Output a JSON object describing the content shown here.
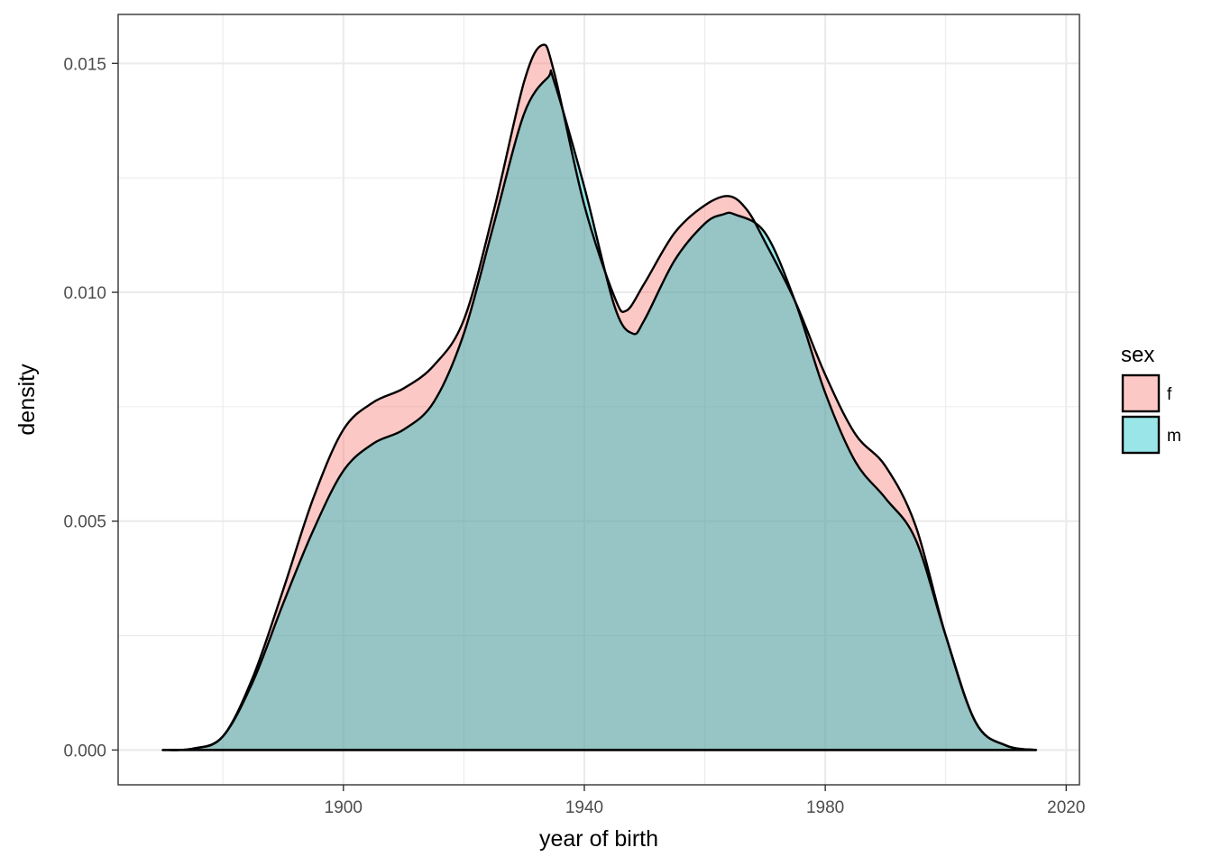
{
  "chart_data": {
    "type": "area",
    "subtype": "density",
    "xlabel": "year of birth",
    "ylabel": "density",
    "xlim": [
      1862.6,
      2022.2
    ],
    "ylim": [
      -0.00076,
      0.01607
    ],
    "x_ticks": [
      1900,
      1940,
      1980,
      2020
    ],
    "x_tick_labels": [
      "1900",
      "1940",
      "1980",
      "2020"
    ],
    "y_ticks": [
      0,
      0.005,
      0.01,
      0.015
    ],
    "y_tick_labels": [
      "0.000",
      "0.005",
      "0.010",
      "0.015"
    ],
    "grid": true,
    "legend": {
      "title": "sex",
      "position": "right",
      "entries": [
        "f",
        "m"
      ]
    },
    "series": [
      {
        "name": "f",
        "color": "#F8766D",
        "opacity": 0.4,
        "x": [
          1870,
          1875,
          1880,
          1885,
          1890,
          1895,
          1900,
          1905,
          1910,
          1915,
          1920,
          1925,
          1930,
          1933,
          1935,
          1940,
          1945,
          1947,
          1950,
          1955,
          1960,
          1964,
          1967,
          1970,
          1975,
          1980,
          1985,
          1990,
          1995,
          2000,
          2005,
          2010,
          2015
        ],
        "y": [
          0.0,
          3e-05,
          0.0003,
          0.0016,
          0.0035,
          0.0055,
          0.007,
          0.0076,
          0.0079,
          0.0084,
          0.0094,
          0.0118,
          0.0146,
          0.0154,
          0.0148,
          0.0119,
          0.0099,
          0.0096,
          0.0102,
          0.0113,
          0.0119,
          0.0121,
          0.0118,
          0.0111,
          0.0098,
          0.0082,
          0.0069,
          0.0062,
          0.0049,
          0.0025,
          0.0006,
          0.0001,
          0.0
        ]
      },
      {
        "name": "m",
        "color": "#00BFC4",
        "opacity": 0.4,
        "x": [
          1870,
          1875,
          1880,
          1885,
          1890,
          1895,
          1900,
          1905,
          1910,
          1915,
          1920,
          1925,
          1930,
          1934,
          1935,
          1940,
          1945,
          1948,
          1950,
          1955,
          1960,
          1963,
          1965,
          1970,
          1975,
          1980,
          1985,
          1990,
          1995,
          2000,
          2005,
          2010,
          2015
        ],
        "y": [
          0.0,
          3e-05,
          0.0003,
          0.0015,
          0.0032,
          0.0048,
          0.0061,
          0.0067,
          0.007,
          0.0076,
          0.0091,
          0.0115,
          0.0139,
          0.0147,
          0.0146,
          0.0123,
          0.0097,
          0.0091,
          0.0094,
          0.0107,
          0.0115,
          0.0117,
          0.0117,
          0.0113,
          0.0098,
          0.0078,
          0.0063,
          0.0055,
          0.0046,
          0.0025,
          0.0006,
          0.0001,
          0.0
        ]
      }
    ]
  }
}
